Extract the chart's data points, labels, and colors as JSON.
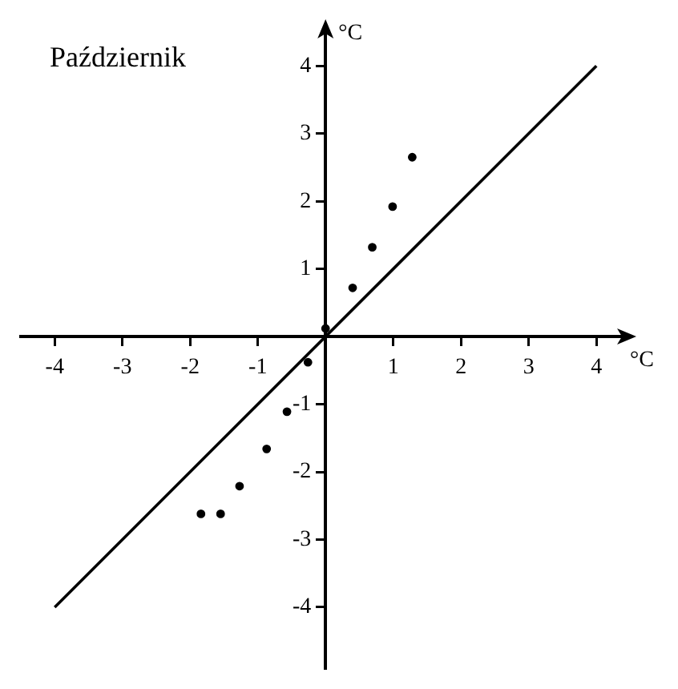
{
  "chart_data": {
    "type": "scatter",
    "title": "Październik",
    "xlabel": "°C",
    "ylabel": "°C",
    "xlim": [
      -4.5,
      4.4
    ],
    "ylim": [
      -4.9,
      4.5
    ],
    "xticks": [
      -4,
      -3,
      -2,
      -1,
      1,
      2,
      3,
      4
    ],
    "yticks": [
      -4,
      -3,
      -2,
      -1,
      1,
      2,
      3,
      4
    ],
    "grid": false,
    "legend": false,
    "series": [
      {
        "type": "scatter",
        "color": "#000000",
        "marker": "circle",
        "x": [
          0,
          0.4,
          0.69,
          0.99,
          1.28,
          -0.26,
          -0.57,
          -0.87,
          -1.27,
          -1.55,
          -1.84
        ],
        "values": [
          0.12,
          0.72,
          1.32,
          1.92,
          2.65,
          -0.38,
          -1.11,
          -1.66,
          -2.21,
          -2.62,
          -2.62
        ]
      },
      {
        "type": "line",
        "color": "#000000",
        "marker": "none",
        "line_style": "solid",
        "x": [
          -4,
          4
        ],
        "values": [
          -4,
          4
        ]
      }
    ]
  }
}
